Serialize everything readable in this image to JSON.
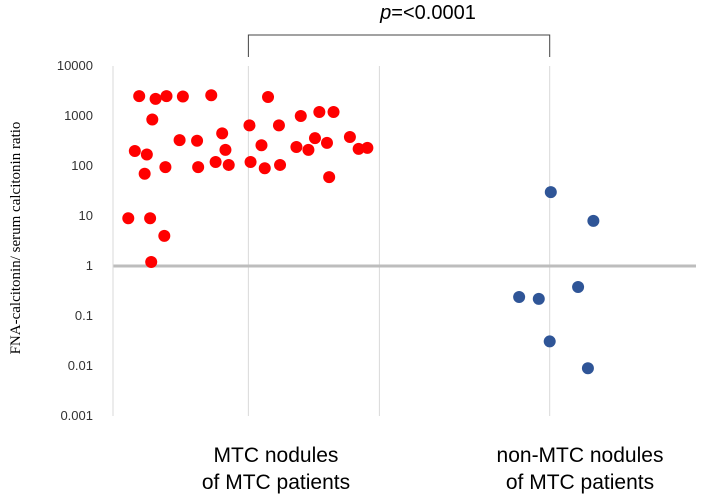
{
  "chart_data": {
    "type": "scatter",
    "yscale": "log",
    "ylim": [
      0.001,
      10000
    ],
    "ylabel": "FNA-calcitonin/ serum calcitonin ratio",
    "yticks": [
      "0.001",
      "0.01",
      "0.1",
      "1",
      "10",
      "100",
      "1000",
      "10000"
    ],
    "reference_line": 1,
    "grid": "vertical only",
    "annotation": {
      "p_symbol": "p",
      "p_text": "=<0.0001"
    },
    "categories": [
      {
        "line1": "MTC nodules",
        "line2": "of MTC patients"
      },
      {
        "line1": "non-MTC nodules",
        "line2": "of MTC patients"
      }
    ],
    "series": [
      {
        "name": "MTC nodules of MTC patients",
        "color": "#ff0000",
        "points": [
          {
            "x": 0.05,
            "y": 9
          },
          {
            "x": 0.08,
            "y": 200
          },
          {
            "x": 0.1,
            "y": 2500
          },
          {
            "x": 0.125,
            "y": 70
          },
          {
            "x": 0.135,
            "y": 170
          },
          {
            "x": 0.15,
            "y": 9
          },
          {
            "x": 0.155,
            "y": 1.2
          },
          {
            "x": 0.16,
            "y": 850
          },
          {
            "x": 0.175,
            "y": 2200
          },
          {
            "x": 0.215,
            "y": 4
          },
          {
            "x": 0.22,
            "y": 95
          },
          {
            "x": 0.225,
            "y": 2500
          },
          {
            "x": 0.285,
            "y": 330
          },
          {
            "x": 0.3,
            "y": 2450
          },
          {
            "x": 0.365,
            "y": 320
          },
          {
            "x": 0.37,
            "y": 95
          },
          {
            "x": 0.43,
            "y": 2600
          },
          {
            "x": 0.45,
            "y": 120
          },
          {
            "x": 0.48,
            "y": 450
          },
          {
            "x": 0.495,
            "y": 210
          },
          {
            "x": 0.51,
            "y": 105
          },
          {
            "x": 0.605,
            "y": 650
          },
          {
            "x": 0.61,
            "y": 120
          },
          {
            "x": 0.66,
            "y": 260
          },
          {
            "x": 0.675,
            "y": 90
          },
          {
            "x": 0.69,
            "y": 2400
          },
          {
            "x": 0.74,
            "y": 650
          },
          {
            "x": 0.745,
            "y": 105
          },
          {
            "x": 0.82,
            "y": 240
          },
          {
            "x": 0.84,
            "y": 1000
          },
          {
            "x": 0.875,
            "y": 210
          },
          {
            "x": 0.905,
            "y": 360
          },
          {
            "x": 0.925,
            "y": 1200
          },
          {
            "x": 0.96,
            "y": 290
          },
          {
            "x": 0.97,
            "y": 60
          },
          {
            "x": 0.99,
            "y": 1200
          },
          {
            "x": 1.065,
            "y": 380
          },
          {
            "x": 1.105,
            "y": 220
          },
          {
            "x": 1.145,
            "y": 230
          }
        ]
      },
      {
        "name": "non-MTC nodules of MTC patients",
        "color": "#2f5597",
        "points": [
          {
            "x": 1.84,
            "y": 0.24
          },
          {
            "x": 1.93,
            "y": 0.22
          },
          {
            "x": 1.985,
            "y": 30
          },
          {
            "x": 1.98,
            "y": 0.031
          },
          {
            "x": 2.11,
            "y": 0.38
          },
          {
            "x": 2.155,
            "y": 0.009
          },
          {
            "x": 2.18,
            "y": 8
          }
        ]
      }
    ],
    "xlim": [
      -0.02,
      2.65
    ],
    "group_centers": [
      0.6,
      1.98
    ],
    "vertical_gridlines_x": [
      0.6,
      1.2,
      1.98
    ]
  }
}
